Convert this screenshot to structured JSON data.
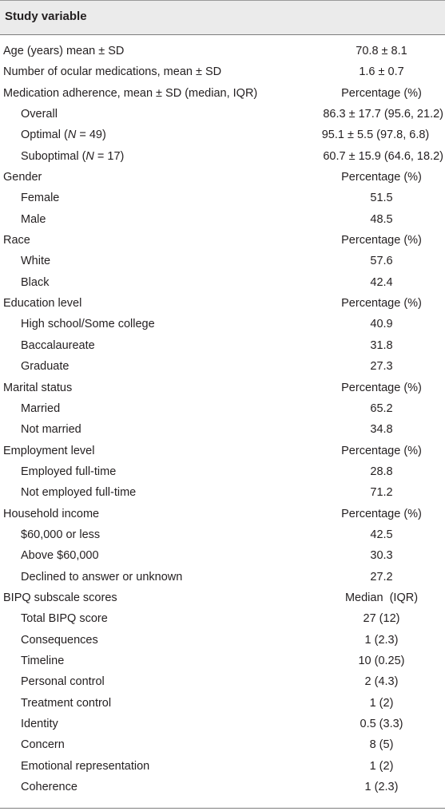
{
  "header": {
    "title": "Study variable"
  },
  "rows": [
    {
      "label": "Age (years) mean ± SD",
      "value": "70.8 ± 8.1"
    },
    {
      "label": "Number of ocular medications, mean ± SD",
      "value": "1.6 ± 0.7"
    },
    {
      "label": "Medication adherence, mean ± SD (median, IQR)",
      "value": "Percentage (%)"
    },
    {
      "label": "Overall",
      "value": "86.3 ± 17.7 (95.6, 21.2)"
    },
    {
      "label_pre": "Optimal (",
      "label_n": "N",
      "label_post": " = 49)",
      "value": "95.1 ± 5.5 (97.8, 6.8)"
    },
    {
      "label_pre": "Suboptimal (",
      "label_n": "N",
      "label_post": " = 17)",
      "value": "60.7 ± 15.9 (64.6, 18.2)"
    },
    {
      "label": "Gender",
      "value": "Percentage (%)"
    },
    {
      "label": "Female",
      "value": "51.5"
    },
    {
      "label": "Male",
      "value": "48.5"
    },
    {
      "label": "Race",
      "value": "Percentage (%)"
    },
    {
      "label": "White",
      "value": "57.6"
    },
    {
      "label": "Black",
      "value": "42.4"
    },
    {
      "label": "Education level",
      "value": "Percentage (%)"
    },
    {
      "label": "High school/Some college",
      "value": "40.9"
    },
    {
      "label": "Baccalaureate",
      "value": "31.8"
    },
    {
      "label": "Graduate",
      "value": "27.3"
    },
    {
      "label": "Marital status",
      "value": "Percentage (%)"
    },
    {
      "label": "Married",
      "value": "65.2"
    },
    {
      "label": "Not married",
      "value": "34.8"
    },
    {
      "label": "Employment level",
      "value": "Percentage (%)"
    },
    {
      "label": "Employed full-time",
      "value": "28.8"
    },
    {
      "label": "Not employed full-time",
      "value": "71.2"
    },
    {
      "label": "Household income",
      "value": "Percentage (%)"
    },
    {
      "label": "$60,000 or less",
      "value": "42.5"
    },
    {
      "label": "Above $60,000",
      "value": "30.3"
    },
    {
      "label": "Declined to answer or unknown",
      "value": "27.2"
    },
    {
      "label": "BIPQ subscale scores",
      "value": "Median  (IQR)"
    },
    {
      "label": "Total BIPQ score",
      "value": "27 (12)"
    },
    {
      "label": "Consequences",
      "value": "1 (2.3)"
    },
    {
      "label": "Timeline",
      "value": "10 (0.25)"
    },
    {
      "label": "Personal control",
      "value": "2 (4.3)"
    },
    {
      "label": "Treatment control",
      "value": "1 (2)"
    },
    {
      "label": "Identity",
      "value": "0.5 (3.3)"
    },
    {
      "label": "Concern",
      "value": "8 (5)"
    },
    {
      "label": "Emotional representation",
      "value": "1 (2)"
    },
    {
      "label": "Coherence",
      "value": "1 (2.3)"
    }
  ]
}
